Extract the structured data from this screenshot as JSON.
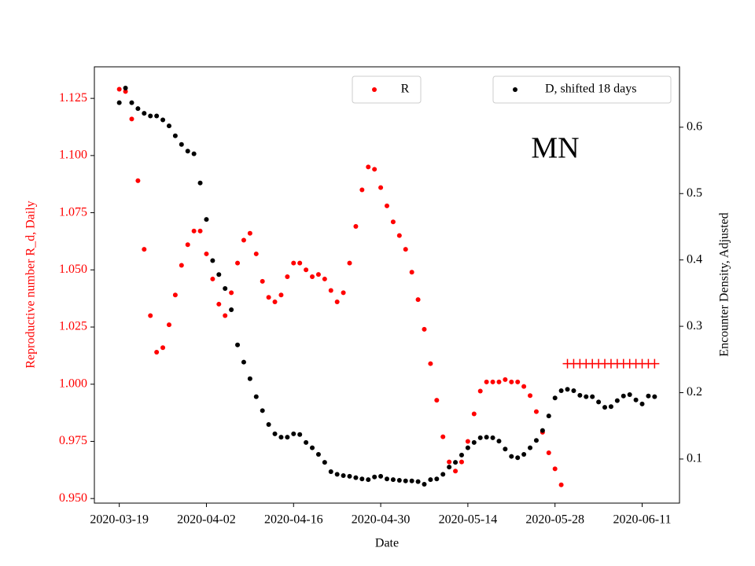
{
  "chart_data": {
    "type": "scatter",
    "annotation": "MN",
    "xlabel": "Date",
    "ylabel": "Reproductive number R_d, Daily",
    "y2label": "Encounter Density, Adjusted",
    "xlim": [
      "2020-03-15",
      "2020-06-17"
    ],
    "xticks": [
      "2020-03-19",
      "2020-04-02",
      "2020-04-16",
      "2020-04-30",
      "2020-05-14",
      "2020-05-28",
      "2020-06-11"
    ],
    "ylim": [
      0.948,
      1.1388
    ],
    "yticks": [
      {
        "value": 0.95,
        "label": "0.950"
      },
      0.975,
      {
        "value": 1.0,
        "label": "1.000"
      },
      1.025,
      {
        "value": 1.05,
        "label": "1.050"
      },
      1.075,
      {
        "value": 1.1,
        "label": "1.100"
      },
      1.125
    ],
    "y2lim": [
      0.0336,
      0.691
    ],
    "y2ticks": [
      0.1,
      0.2,
      0.3,
      0.4,
      0.5,
      0.6
    ],
    "series": [
      {
        "name": "R",
        "color": "#ff0000",
        "marker": "dot",
        "legend": "upper center",
        "x": [
          "2020-03-19",
          "2020-03-20",
          "2020-03-21",
          "2020-03-22",
          "2020-03-23",
          "2020-03-24",
          "2020-03-25",
          "2020-03-26",
          "2020-03-27",
          "2020-03-28",
          "2020-03-29",
          "2020-03-30",
          "2020-03-31",
          "2020-04-01",
          "2020-04-02",
          "2020-04-03",
          "2020-04-04",
          "2020-04-05",
          "2020-04-06",
          "2020-04-07",
          "2020-04-08",
          "2020-04-09",
          "2020-04-10",
          "2020-04-11",
          "2020-04-12",
          "2020-04-13",
          "2020-04-14",
          "2020-04-15",
          "2020-04-16",
          "2020-04-17",
          "2020-04-18",
          "2020-04-19",
          "2020-04-20",
          "2020-04-21",
          "2020-04-22",
          "2020-04-23",
          "2020-04-24",
          "2020-04-25",
          "2020-04-26",
          "2020-04-27",
          "2020-04-28",
          "2020-04-29",
          "2020-04-30",
          "2020-05-01",
          "2020-05-02",
          "2020-05-03",
          "2020-05-04",
          "2020-05-05",
          "2020-05-06",
          "2020-05-07",
          "2020-05-08",
          "2020-05-09",
          "2020-05-10",
          "2020-05-11",
          "2020-05-12",
          "2020-05-13",
          "2020-05-14",
          "2020-05-15",
          "2020-05-16",
          "2020-05-17",
          "2020-05-18",
          "2020-05-19",
          "2020-05-20",
          "2020-05-21",
          "2020-05-22",
          "2020-05-23",
          "2020-05-24",
          "2020-05-25",
          "2020-05-26",
          "2020-05-27",
          "2020-05-28",
          "2020-05-29"
        ],
        "values": [
          1.129,
          1.128,
          1.116,
          1.089,
          1.059,
          1.03,
          1.014,
          1.016,
          1.026,
          1.039,
          1.052,
          1.061,
          1.067,
          1.067,
          1.057,
          1.046,
          1.035,
          1.03,
          1.04,
          1.053,
          1.063,
          1.066,
          1.057,
          1.045,
          1.038,
          1.036,
          1.039,
          1.047,
          1.053,
          1.053,
          1.05,
          1.047,
          1.048,
          1.046,
          1.041,
          1.036,
          1.04,
          1.053,
          1.069,
          1.085,
          1.095,
          1.094,
          1.086,
          1.078,
          1.071,
          1.065,
          1.059,
          1.049,
          1.037,
          1.024,
          1.009,
          0.993,
          0.977,
          0.966,
          0.962,
          0.966,
          0.975,
          0.987,
          0.997,
          1.001,
          1.001,
          1.001,
          1.002,
          1.001,
          1.001,
          0.999,
          0.995,
          0.988,
          0.979,
          0.97,
          0.963,
          0.956
        ]
      },
      {
        "color": "#ff0000",
        "marker": "plus",
        "x": [
          "2020-05-30",
          "2020-05-31",
          "2020-06-01",
          "2020-06-02",
          "2020-06-03",
          "2020-06-04",
          "2020-06-05",
          "2020-06-06",
          "2020-06-07",
          "2020-06-08",
          "2020-06-09",
          "2020-06-10",
          "2020-06-11",
          "2020-06-12",
          "2020-06-13"
        ],
        "values": [
          1.009,
          1.009,
          1.009,
          1.009,
          1.009,
          1.009,
          1.009,
          1.009,
          1.009,
          1.009,
          1.009,
          1.009,
          1.009,
          1.009,
          1.009
        ]
      },
      {
        "name": "D, shifted 18 days",
        "color": "#000000",
        "marker": "dot",
        "axis": "y2",
        "legend": "upper right",
        "x": [
          "2020-03-19",
          "2020-03-20",
          "2020-03-21",
          "2020-03-22",
          "2020-03-23",
          "2020-03-24",
          "2020-03-25",
          "2020-03-26",
          "2020-03-27",
          "2020-03-28",
          "2020-03-29",
          "2020-03-30",
          "2020-03-31",
          "2020-04-01",
          "2020-04-02",
          "2020-04-03",
          "2020-04-04",
          "2020-04-05",
          "2020-04-06",
          "2020-04-07",
          "2020-04-08",
          "2020-04-09",
          "2020-04-10",
          "2020-04-11",
          "2020-04-12",
          "2020-04-13",
          "2020-04-14",
          "2020-04-15",
          "2020-04-16",
          "2020-04-17",
          "2020-04-18",
          "2020-04-19",
          "2020-04-20",
          "2020-04-21",
          "2020-04-22",
          "2020-04-23",
          "2020-04-24",
          "2020-04-25",
          "2020-04-26",
          "2020-04-27",
          "2020-04-28",
          "2020-04-29",
          "2020-04-30",
          "2020-05-01",
          "2020-05-02",
          "2020-05-03",
          "2020-05-04",
          "2020-05-05",
          "2020-05-06",
          "2020-05-07",
          "2020-05-08",
          "2020-05-09",
          "2020-05-10",
          "2020-05-11",
          "2020-05-12",
          "2020-05-13",
          "2020-05-14",
          "2020-05-15",
          "2020-05-16",
          "2020-05-17",
          "2020-05-18",
          "2020-05-19",
          "2020-05-20",
          "2020-05-21",
          "2020-05-22",
          "2020-05-23",
          "2020-05-24",
          "2020-05-25",
          "2020-05-26",
          "2020-05-27",
          "2020-05-28",
          "2020-05-29",
          "2020-05-30",
          "2020-05-31",
          "2020-06-01",
          "2020-06-02",
          "2020-06-03",
          "2020-06-04",
          "2020-06-05",
          "2020-06-06",
          "2020-06-07",
          "2020-06-08",
          "2020-06-09",
          "2020-06-10",
          "2020-06-11",
          "2020-06-12",
          "2020-06-13"
        ],
        "values": [
          0.637,
          0.659,
          0.637,
          0.628,
          0.621,
          0.617,
          0.617,
          0.611,
          0.602,
          0.587,
          0.574,
          0.564,
          0.56,
          0.516,
          0.461,
          0.399,
          0.378,
          0.357,
          0.325,
          0.272,
          0.246,
          0.221,
          0.194,
          0.173,
          0.152,
          0.138,
          0.133,
          0.133,
          0.138,
          0.137,
          0.125,
          0.117,
          0.107,
          0.095,
          0.081,
          0.077,
          0.075,
          0.074,
          0.072,
          0.07,
          0.069,
          0.073,
          0.074,
          0.07,
          0.069,
          0.068,
          0.067,
          0.067,
          0.066,
          0.062,
          0.069,
          0.07,
          0.077,
          0.088,
          0.095,
          0.106,
          0.117,
          0.125,
          0.132,
          0.133,
          0.132,
          0.127,
          0.115,
          0.104,
          0.102,
          0.107,
          0.117,
          0.128,
          0.143,
          0.165,
          0.192,
          0.203,
          0.205,
          0.203,
          0.196,
          0.194,
          0.194,
          0.186,
          0.178,
          0.179,
          0.188,
          0.195,
          0.197,
          0.189,
          0.183,
          0.195,
          0.194
        ]
      }
    ]
  }
}
